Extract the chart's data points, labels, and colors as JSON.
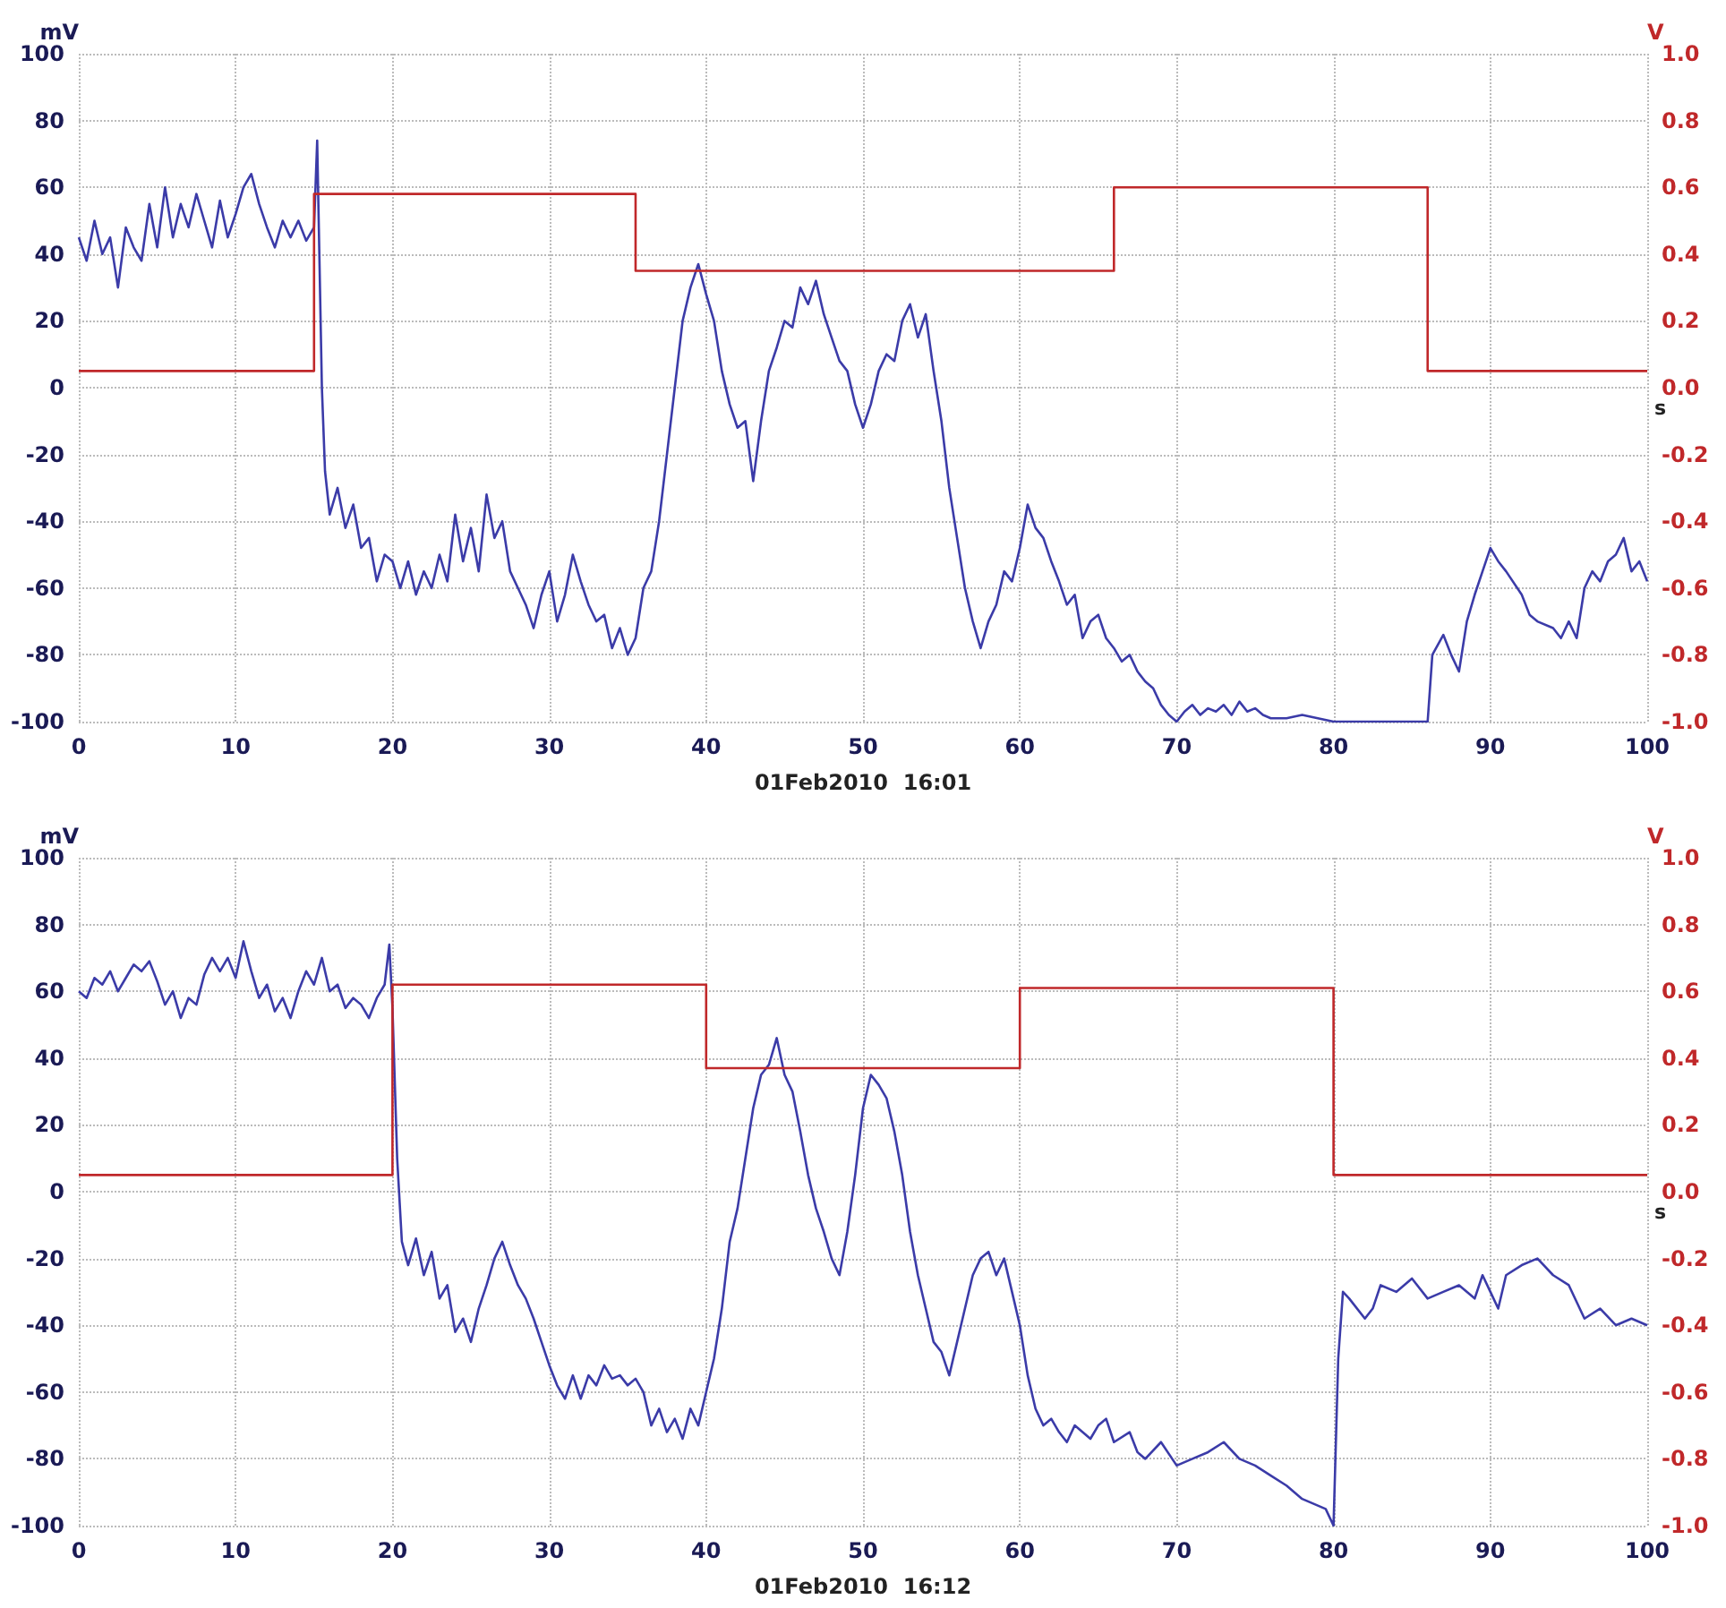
{
  "chart_data": [
    {
      "type": "line",
      "ylabel": "mV",
      "y2label": "V",
      "xlabel": "s",
      "annotations": [
        "01Feb2010  16:01"
      ],
      "xlim": [
        0,
        100
      ],
      "xticks": [
        0,
        10,
        20,
        30,
        40,
        50,
        60,
        70,
        80,
        90,
        100
      ],
      "ylim": [
        -100,
        100
      ],
      "yticks": [
        -100,
        -80,
        -60,
        -40,
        -20,
        0,
        20,
        40,
        60,
        80,
        100
      ],
      "y2lim": [
        -1,
        1
      ],
      "y2ticks": [
        {
          "value": -1,
          "label": "-1.0"
        },
        -0.8,
        -0.6,
        -0.4,
        -0.2,
        {
          "value": 0,
          "label": "0.0"
        },
        0.2,
        0.4,
        0.6,
        0.8,
        {
          "value": 1,
          "label": "1.0"
        }
      ],
      "grid": true,
      "line_style": "solid",
      "marker": "none",
      "series": [
        {
          "color": "#3b3ba8",
          "x": [
            0,
            0.5,
            1,
            1.5,
            2,
            2.5,
            3,
            3.5,
            4,
            4.5,
            5,
            5.5,
            6,
            6.5,
            7,
            7.5,
            8,
            8.5,
            9,
            9.5,
            10,
            10.5,
            11,
            11.5,
            12,
            12.5,
            13,
            13.5,
            14,
            14.5,
            15,
            15.2,
            15.5,
            15.7,
            16,
            16.5,
            17,
            17.5,
            18,
            18.5,
            19,
            19.5,
            20,
            20.5,
            21,
            21.5,
            22,
            22.5,
            23,
            23.5,
            24,
            24.5,
            25,
            25.5,
            26,
            26.5,
            27,
            27.5,
            28,
            28.5,
            29,
            29.5,
            30,
            30.5,
            31,
            31.5,
            32,
            32.5,
            33,
            33.5,
            34,
            34.5,
            35,
            35.5,
            36,
            36.5,
            37,
            37.5,
            38,
            38.5,
            39,
            39.5,
            40,
            40.5,
            41,
            41.5,
            42,
            42.5,
            43,
            43.5,
            44,
            44.5,
            45,
            45.5,
            46,
            46.5,
            47,
            47.5,
            48,
            48.5,
            49,
            49.5,
            50,
            50.5,
            51,
            51.5,
            52,
            52.5,
            53,
            53.5,
            54,
            54.5,
            55,
            55.5,
            56,
            56.5,
            57,
            57.5,
            58,
            58.5,
            59,
            59.5,
            60,
            60.5,
            61,
            61.5,
            62,
            62.5,
            63,
            63.5,
            64,
            64.5,
            65,
            65.5,
            66,
            66.5,
            67,
            67.5,
            68,
            68.5,
            69,
            69.5,
            70,
            70.5,
            71,
            71.5,
            72,
            72.5,
            73,
            73.5,
            74,
            74.5,
            75,
            75.5,
            76,
            77,
            78,
            79,
            80,
            82,
            83,
            86,
            86.3,
            87,
            87.5,
            88,
            88.5,
            89,
            89.5,
            90,
            90.5,
            91,
            92,
            92.5,
            93,
            94,
            94.5,
            95,
            95.5,
            96,
            96.5,
            97,
            97.5,
            98,
            98.5,
            99,
            99.5,
            100
          ],
          "values": [
            45,
            38,
            50,
            40,
            45,
            30,
            48,
            42,
            38,
            55,
            42,
            60,
            45,
            55,
            48,
            58,
            50,
            42,
            56,
            45,
            52,
            60,
            64,
            55,
            48,
            42,
            50,
            45,
            50,
            44,
            48,
            74,
            0,
            -25,
            -38,
            -30,
            -42,
            -35,
            -48,
            -45,
            -58,
            -50,
            -52,
            -60,
            -52,
            -62,
            -55,
            -60,
            -50,
            -58,
            -38,
            -52,
            -42,
            -55,
            -32,
            -45,
            -40,
            -55,
            -60,
            -65,
            -72,
            -62,
            -55,
            -70,
            -62,
            -50,
            -58,
            -65,
            -70,
            -68,
            -78,
            -72,
            -80,
            -75,
            -60,
            -55,
            -40,
            -20,
            0,
            20,
            30,
            37,
            28,
            20,
            5,
            -5,
            -12,
            -10,
            -28,
            -10,
            5,
            12,
            20,
            18,
            30,
            25,
            32,
            22,
            15,
            8,
            5,
            -5,
            -12,
            -5,
            5,
            10,
            8,
            20,
            25,
            15,
            22,
            5,
            -10,
            -30,
            -45,
            -60,
            -70,
            -78,
            -70,
            -65,
            -55,
            -58,
            -48,
            -35,
            -42,
            -45,
            -52,
            -58,
            -65,
            -62,
            -75,
            -70,
            -68,
            -75,
            -78,
            -82,
            -80,
            -85,
            -88,
            -90,
            -95,
            -98,
            -100,
            -97,
            -95,
            -98,
            -96,
            -97,
            -95,
            -98,
            -94,
            -97,
            -96,
            -98,
            -99,
            -99,
            -98,
            -99,
            -100,
            -100,
            -100,
            -100,
            -80,
            -74,
            -80,
            -85,
            -70,
            -62,
            -55,
            -48,
            -52,
            -55,
            -62,
            -68,
            -70,
            -72,
            -75,
            -70,
            -75,
            -60,
            -55,
            -58,
            -52,
            -50,
            -45,
            -55,
            -52,
            -58
          ]
        },
        {
          "type": "step",
          "axis": "y2",
          "color": "#c0282a",
          "x": [
            0,
            15,
            35.5,
            66,
            86,
            100
          ],
          "values": [
            0.05,
            0.58,
            0.35,
            0.6,
            0.05,
            0.05
          ]
        }
      ]
    },
    {
      "type": "line",
      "ylabel": "mV",
      "y2label": "V",
      "xlabel": "s",
      "annotations": [
        "01Feb2010  16:12"
      ],
      "xlim": [
        0,
        100
      ],
      "xticks": [
        0,
        10,
        20,
        30,
        40,
        50,
        60,
        70,
        80,
        90,
        100
      ],
      "ylim": [
        -100,
        100
      ],
      "yticks": [
        -100,
        -80,
        -60,
        -40,
        -20,
        0,
        20,
        40,
        60,
        80,
        100
      ],
      "y2lim": [
        -1,
        1
      ],
      "y2ticks": [
        {
          "value": -1,
          "label": "-1.0"
        },
        -0.8,
        -0.6,
        -0.4,
        -0.2,
        {
          "value": 0,
          "label": "0.0"
        },
        0.2,
        0.4,
        0.6,
        0.8,
        {
          "value": 1,
          "label": "1.0"
        }
      ],
      "grid": true,
      "line_style": "solid",
      "marker": "none",
      "series": [
        {
          "color": "#3b3ba8",
          "x": [
            0,
            0.5,
            1,
            1.5,
            2,
            2.5,
            3,
            3.5,
            4,
            4.5,
            5,
            5.5,
            6,
            6.5,
            7,
            7.5,
            8,
            8.5,
            9,
            9.5,
            10,
            10.5,
            11,
            11.5,
            12,
            12.5,
            13,
            13.5,
            14,
            14.5,
            15,
            15.5,
            16,
            16.5,
            17,
            17.5,
            18,
            18.5,
            19,
            19.5,
            19.8,
            20,
            20.3,
            20.6,
            21,
            21.5,
            22,
            22.5,
            23,
            23.5,
            24,
            24.5,
            25,
            25.5,
            26,
            26.5,
            27,
            27.5,
            28,
            28.5,
            29,
            29.5,
            30,
            30.5,
            31,
            31.5,
            32,
            32.5,
            33,
            33.5,
            34,
            34.5,
            35,
            35.5,
            36,
            36.5,
            37,
            37.5,
            38,
            38.5,
            39,
            39.5,
            40,
            40.5,
            41,
            41.5,
            42,
            42.5,
            43,
            43.5,
            44,
            44.5,
            45,
            45.5,
            46,
            46.5,
            47,
            47.5,
            48,
            48.5,
            49,
            49.5,
            50,
            50.5,
            51,
            51.5,
            52,
            52.5,
            53,
            53.5,
            54,
            54.5,
            55,
            55.5,
            56,
            56.5,
            57,
            57.5,
            58,
            58.5,
            59,
            59.5,
            60,
            60.5,
            61,
            61.5,
            62,
            62.5,
            63,
            63.5,
            64,
            64.5,
            65,
            65.5,
            66,
            67,
            67.5,
            68,
            69,
            70,
            71,
            72,
            73,
            74,
            75,
            76,
            77,
            78,
            79,
            79.5,
            80,
            80.3,
            80.6,
            81,
            82,
            82.5,
            83,
            84,
            85,
            86,
            87,
            88,
            89,
            89.5,
            90,
            90.5,
            91,
            92,
            93,
            94,
            95,
            96,
            97,
            98,
            99,
            100
          ],
          "values": [
            60,
            58,
            64,
            62,
            66,
            60,
            64,
            68,
            66,
            69,
            63,
            56,
            60,
            52,
            58,
            56,
            65,
            70,
            66,
            70,
            64,
            75,
            66,
            58,
            62,
            54,
            58,
            52,
            60,
            66,
            62,
            70,
            60,
            62,
            55,
            58,
            56,
            52,
            58,
            62,
            74,
            55,
            10,
            -15,
            -22,
            -14,
            -25,
            -18,
            -32,
            -28,
            -42,
            -38,
            -45,
            -35,
            -28,
            -20,
            -15,
            -22,
            -28,
            -32,
            -38,
            -45,
            -52,
            -58,
            -62,
            -55,
            -62,
            -55,
            -58,
            -52,
            -56,
            -55,
            -58,
            -56,
            -60,
            -70,
            -65,
            -72,
            -68,
            -74,
            -65,
            -70,
            -60,
            -50,
            -35,
            -15,
            -5,
            10,
            25,
            35,
            38,
            46,
            35,
            30,
            18,
            5,
            -5,
            -12,
            -20,
            -25,
            -12,
            5,
            25,
            35,
            32,
            28,
            18,
            5,
            -12,
            -25,
            -35,
            -45,
            -48,
            -55,
            -45,
            -35,
            -25,
            -20,
            -18,
            -25,
            -20,
            -30,
            -40,
            -55,
            -65,
            -70,
            -68,
            -72,
            -75,
            -70,
            -72,
            -74,
            -70,
            -68,
            -75,
            -72,
            -78,
            -80,
            -75,
            -82,
            -80,
            -78,
            -75,
            -80,
            -82,
            -85,
            -88,
            -92,
            -94,
            -95,
            -100,
            -50,
            -30,
            -32,
            -38,
            -35,
            -28,
            -30,
            -26,
            -32,
            -30,
            -28,
            -32,
            -25,
            -30,
            -35,
            -25,
            -22,
            -20,
            -25,
            -28,
            -38,
            -35,
            -40,
            -38,
            -40
          ]
        },
        {
          "type": "step",
          "axis": "y2",
          "color": "#c0282a",
          "x": [
            0,
            20,
            40,
            60,
            80,
            100
          ],
          "values": [
            0.05,
            0.62,
            0.37,
            0.61,
            0.05,
            0.05
          ]
        }
      ]
    }
  ]
}
